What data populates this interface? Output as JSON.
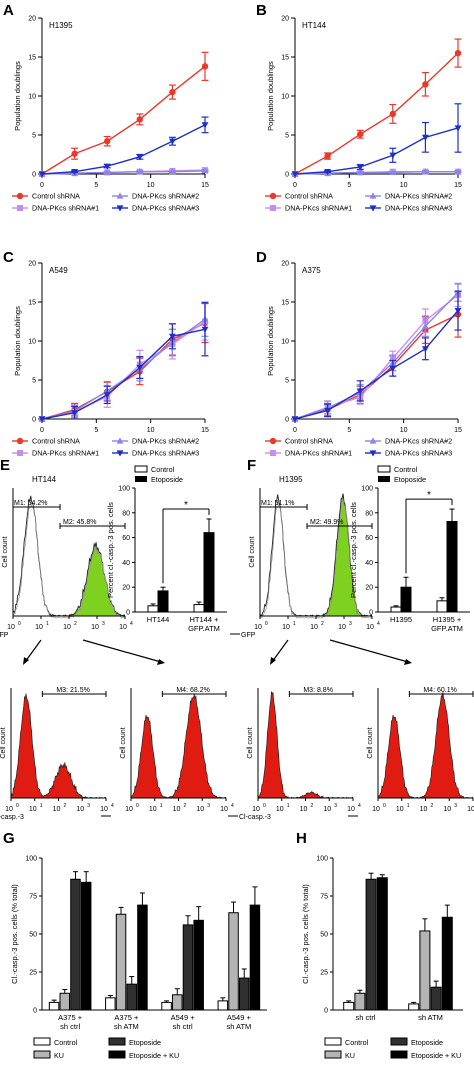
{
  "colors": {
    "control": "#e8392b",
    "sh1": "#c78cf0",
    "sh2": "#8a86e8",
    "sh3": "#1c2fc9",
    "green": "#7fd11f",
    "red": "#e01b12",
    "bar_gray": "#b4b4b4",
    "bar_dark": "#303030"
  },
  "panel_labels": {
    "A": "A",
    "B": "B",
    "C": "C",
    "D": "D",
    "E": "E",
    "F": "F",
    "G": "G",
    "H": "H"
  },
  "growth_legend": {
    "control": "Control shRNA",
    "sh1": "DNA-PKcs shRNA#1",
    "sh2": "DNA-PKcs shRNA#2",
    "sh3": "DNA-PKcs shRNA#3"
  },
  "flow": {
    "E": {
      "title": "HT144",
      "m1": "M1: 54.2%",
      "m2": "M2: 45.8%",
      "m3": "M3: 21.5%",
      "m4": "M4: 68.2%",
      "gfp_x": "GFP",
      "casp_x": "Cl-casp.-3",
      "y": "Cell count",
      "ticks": [
        "10",
        "10",
        "10",
        "10",
        "10"
      ],
      "tick_exp": [
        "0",
        "1",
        "2",
        "3",
        "4"
      ]
    },
    "F": {
      "title": "H1395",
      "m1": "M1: 51.1%",
      "m2": "M2: 49.9%",
      "m3": "M3: 8.8%",
      "m4": "M4: 60.1%",
      "gfp_x": "GFP",
      "casp_x": "Cl-casp.-3",
      "y": "Cell count",
      "ticks": [
        "10",
        "10",
        "10",
        "10",
        "10"
      ],
      "tick_exp": [
        "0",
        "1",
        "2",
        "3",
        "4"
      ]
    }
  },
  "chart_data": [
    {
      "id": "A",
      "type": "line",
      "title": "H1395",
      "xlabel": "",
      "ylabel": "Population doublings",
      "xlim": [
        0,
        15
      ],
      "ylim": [
        0,
        20
      ],
      "xticks": [
        0,
        5,
        10,
        15
      ],
      "yticks": [
        0,
        5,
        10,
        15,
        20
      ],
      "x": [
        0,
        3,
        6,
        9,
        12,
        15
      ],
      "series": [
        {
          "name": "Control shRNA",
          "key": "control",
          "values": [
            0,
            2.6,
            4.2,
            7.0,
            10.5,
            13.8
          ],
          "err": [
            0,
            0.7,
            0.6,
            0.7,
            0.9,
            1.8
          ]
        },
        {
          "name": "DNA-PKcs shRNA#1",
          "key": "sh1",
          "values": [
            0,
            0.1,
            0.2,
            0.3,
            0.4,
            0.5
          ],
          "err": [
            0,
            0.1,
            0.1,
            0.1,
            0.1,
            0.1
          ]
        },
        {
          "name": "DNA-PKcs shRNA#2",
          "key": "sh2",
          "values": [
            0,
            0.1,
            0.2,
            0.3,
            0.3,
            0.4
          ],
          "err": [
            0,
            0.1,
            0.1,
            0.1,
            0.1,
            0.1
          ]
        },
        {
          "name": "DNA-PKcs shRNA#3",
          "key": "sh3",
          "values": [
            0,
            0.3,
            1.0,
            2.2,
            4.2,
            6.3
          ],
          "err": [
            0,
            0.1,
            0.2,
            0.3,
            0.5,
            1.0
          ]
        }
      ]
    },
    {
      "id": "B",
      "type": "line",
      "title": "HT144",
      "xlabel": "",
      "ylabel": "Population doublings",
      "xlim": [
        0,
        15
      ],
      "ylim": [
        0,
        20
      ],
      "xticks": [
        0,
        5,
        10,
        15
      ],
      "yticks": [
        0,
        5,
        10,
        15,
        20
      ],
      "x": [
        0,
        3,
        6,
        9,
        12,
        15
      ],
      "series": [
        {
          "name": "Control shRNA",
          "key": "control",
          "values": [
            0,
            2.3,
            5.1,
            7.7,
            11.5,
            15.5
          ],
          "err": [
            0,
            0.4,
            0.5,
            1.2,
            1.5,
            1.8
          ]
        },
        {
          "name": "DNA-PKcs shRNA#1",
          "key": "sh1",
          "values": [
            0,
            0.1,
            0.2,
            0.3,
            0.3,
            0.3
          ],
          "err": [
            0,
            0.1,
            0.1,
            0.1,
            0.1,
            0.1
          ]
        },
        {
          "name": "DNA-PKcs shRNA#2",
          "key": "sh2",
          "values": [
            0,
            0.1,
            0.2,
            0.2,
            0.3,
            0.3
          ],
          "err": [
            0,
            0.1,
            0.1,
            0.1,
            0.1,
            0.1
          ]
        },
        {
          "name": "DNA-PKcs shRNA#3",
          "key": "sh3",
          "values": [
            0,
            0.3,
            0.9,
            2.4,
            4.7,
            5.9
          ],
          "err": [
            0,
            0.1,
            0.3,
            0.9,
            1.9,
            3.1
          ]
        }
      ]
    },
    {
      "id": "C",
      "type": "line",
      "title": "A549",
      "xlabel": "",
      "ylabel": "Population doublings",
      "xlim": [
        0,
        15
      ],
      "ylim": [
        0,
        20
      ],
      "xticks": [
        0,
        5,
        10,
        15
      ],
      "yticks": [
        0,
        5,
        10,
        15,
        20
      ],
      "x": [
        0,
        3,
        6,
        9,
        12,
        15
      ],
      "series": [
        {
          "name": "Control shRNA",
          "key": "control",
          "values": [
            0,
            1.2,
            3.5,
            6.1,
            10.2,
            12.3
          ],
          "err": [
            0,
            0.8,
            1.2,
            1.7,
            2.0,
            2.5
          ]
        },
        {
          "name": "DNA-PKcs shRNA#1",
          "key": "sh1",
          "values": [
            0,
            0.9,
            2.9,
            7.0,
            9.6,
            12.5
          ],
          "err": [
            0,
            0.8,
            1.4,
            1.8,
            1.9,
            2.4
          ]
        },
        {
          "name": "DNA-PKcs shRNA#2",
          "key": "sh2",
          "values": [
            0,
            1.0,
            3.6,
            6.4,
            9.8,
            12.8
          ],
          "err": [
            0,
            0.8,
            1.2,
            1.5,
            1.7,
            2.2
          ]
        },
        {
          "name": "DNA-PKcs shRNA#3",
          "key": "sh3",
          "values": [
            0,
            0.8,
            3.1,
            6.6,
            10.6,
            11.5
          ],
          "err": [
            0,
            0.8,
            1.1,
            1.4,
            1.6,
            3.4
          ]
        }
      ]
    },
    {
      "id": "D",
      "type": "line",
      "title": "A375",
      "xlabel": "",
      "ylabel": "Population doublings",
      "xlim": [
        0,
        15
      ],
      "ylim": [
        0,
        20
      ],
      "xticks": [
        0,
        5,
        10,
        15
      ],
      "yticks": [
        0,
        5,
        10,
        15,
        20
      ],
      "x": [
        0,
        3,
        6,
        9,
        12,
        15
      ],
      "series": [
        {
          "name": "Control shRNA",
          "key": "control",
          "values": [
            0,
            1.2,
            3.1,
            6.8,
            11.4,
            13.4
          ],
          "err": [
            0,
            0.8,
            1.1,
            1.3,
            1.7,
            2.9
          ]
        },
        {
          "name": "DNA-PKcs shRNA#1",
          "key": "sh1",
          "values": [
            0,
            1.5,
            2.8,
            7.8,
            12.6,
            15.9
          ],
          "err": [
            0,
            0.8,
            0.9,
            0.9,
            1.5,
            1.5
          ]
        },
        {
          "name": "DNA-PKcs shRNA#2",
          "key": "sh2",
          "values": [
            0,
            1.4,
            3.4,
            7.2,
            11.9,
            16.2
          ],
          "err": [
            0,
            0.9,
            1.0,
            1.0,
            1.3,
            1.1
          ]
        },
        {
          "name": "DNA-PKcs shRNA#3",
          "key": "sh3",
          "values": [
            0,
            1.1,
            3.6,
            6.5,
            9.0,
            13.9
          ],
          "err": [
            0,
            0.8,
            1.3,
            1.0,
            1.4,
            2.5
          ]
        }
      ]
    },
    {
      "id": "E-bars",
      "type": "bar",
      "title": "",
      "ylabel": "Percent cl.-casp.-3 pos. cells",
      "ylim": [
        0,
        100
      ],
      "yticks": [
        0,
        20,
        40,
        60,
        80,
        100
      ],
      "categories": [
        "HT144",
        "HT144 +\nGFP.ATM"
      ],
      "legend": [
        "Control",
        "Etoposide"
      ],
      "series": [
        {
          "name": "Control",
          "values": [
            5,
            6
          ],
          "err": [
            1.5,
            2
          ]
        },
        {
          "name": "Etoposide",
          "values": [
            17,
            64
          ],
          "err": [
            3,
            11
          ]
        }
      ],
      "annotation": "*"
    },
    {
      "id": "F-bars",
      "type": "bar",
      "title": "",
      "ylabel": "Percent cl.-casp.-3 pos. cells",
      "ylim": [
        0,
        100
      ],
      "yticks": [
        0,
        20,
        40,
        60,
        80,
        100
      ],
      "categories": [
        "H1395",
        "H1395 +\nGFP.ATM"
      ],
      "legend": [
        "Control",
        "Etoposide"
      ],
      "series": [
        {
          "name": "Control",
          "values": [
            4,
            9
          ],
          "err": [
            1,
            2.5
          ]
        },
        {
          "name": "Etoposide",
          "values": [
            20,
            73
          ],
          "err": [
            8,
            10
          ]
        }
      ],
      "annotation": "*"
    },
    {
      "id": "G",
      "type": "bar",
      "title": "",
      "ylabel": "Cl.-casp.-3 pos. cells (% total)",
      "ylim": [
        0,
        100
      ],
      "yticks": [
        0,
        25,
        50,
        75,
        100
      ],
      "categories": [
        "A375 +\nsh ctrl",
        "A375 +\nsh ATM",
        "A549 +\nsh ctrl",
        "A549 +\nsh ATM"
      ],
      "legend": [
        "Control",
        "KU",
        "Etoposide",
        "Etoposide + KU"
      ],
      "series": [
        {
          "name": "Control",
          "values": [
            5,
            8,
            5,
            6
          ],
          "err": [
            1.5,
            1.5,
            1,
            2
          ]
        },
        {
          "name": "KU",
          "values": [
            11,
            63,
            10,
            64
          ],
          "err": [
            2.5,
            4.5,
            4,
            7
          ]
        },
        {
          "name": "Etoposide",
          "values": [
            86,
            17,
            56,
            21
          ],
          "err": [
            5,
            5,
            6,
            6
          ]
        },
        {
          "name": "Etoposide + KU",
          "values": [
            84,
            69,
            59,
            69
          ],
          "err": [
            7,
            8,
            9,
            12
          ]
        }
      ]
    },
    {
      "id": "H",
      "type": "bar",
      "title": "",
      "ylabel": "Cl.-casp.-3 pos. cells (% total)",
      "ylim": [
        0,
        100
      ],
      "yticks": [
        0,
        25,
        50,
        75,
        100
      ],
      "categories": [
        "sh ctrl",
        "sh ATM"
      ],
      "legend": [
        "Control",
        "KU",
        "Etoposide",
        "Etoposide + KU"
      ],
      "series": [
        {
          "name": "Control",
          "values": [
            5,
            4
          ],
          "err": [
            1,
            1
          ]
        },
        {
          "name": "KU",
          "values": [
            11,
            52
          ],
          "err": [
            2,
            8
          ]
        },
        {
          "name": "Etoposide",
          "values": [
            86,
            15
          ],
          "err": [
            4,
            4
          ]
        },
        {
          "name": "Etoposide + KU",
          "values": [
            87,
            61
          ],
          "err": [
            2,
            8
          ]
        }
      ]
    }
  ]
}
